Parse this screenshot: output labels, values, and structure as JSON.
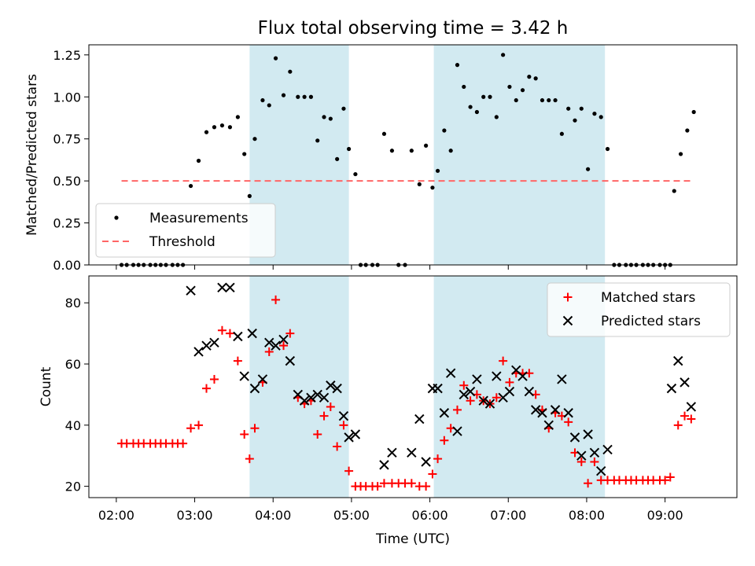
{
  "figure_title": "Flux total observing time = 3.42 h",
  "chart_data": [
    {
      "type": "scatter",
      "title": "Flux total observing time = 3.42 h",
      "xlabel": "",
      "ylabel": "Matched/Predicted stars",
      "xlim": [
        "01:39",
        "09:55"
      ],
      "ylim": [
        0,
        1.31
      ],
      "yticks": [
        0.0,
        0.25,
        0.5,
        0.75,
        1.0,
        1.25
      ],
      "ytick_labels": [
        "0.00",
        "0.25",
        "0.50",
        "0.75",
        "1.00",
        "1.25"
      ],
      "shaded_intervals": [
        [
          "03:42",
          "04:58"
        ],
        [
          "06:03",
          "08:14"
        ]
      ],
      "shade_color": "#add8e6",
      "legend_position": "lower-left",
      "series": [
        {
          "name": "Measurements",
          "marker": "point",
          "color": "#000000",
          "points": [
            [
              "02:04",
              0
            ],
            [
              "02:08",
              0
            ],
            [
              "02:13",
              0
            ],
            [
              "02:17",
              0
            ],
            [
              "02:21",
              0
            ],
            [
              "02:26",
              0
            ],
            [
              "02:30",
              0
            ],
            [
              "02:34",
              0
            ],
            [
              "02:38",
              0
            ],
            [
              "02:43",
              0
            ],
            [
              "02:47",
              0
            ],
            [
              "02:51",
              0
            ],
            [
              "02:57",
              0.47
            ],
            [
              "03:03",
              0.62
            ],
            [
              "03:09",
              0.79
            ],
            [
              "03:15",
              0.82
            ],
            [
              "03:21",
              0.83
            ],
            [
              "03:27",
              0.82
            ],
            [
              "03:33",
              0.88
            ],
            [
              "03:38",
              0.66
            ],
            [
              "03:42",
              0.41
            ],
            [
              "03:46",
              0.75
            ],
            [
              "03:52",
              0.98
            ],
            [
              "03:57",
              0.95
            ],
            [
              "04:02",
              1.23
            ],
            [
              "04:08",
              1.01
            ],
            [
              "04:13",
              1.15
            ],
            [
              "04:19",
              1.0
            ],
            [
              "04:24",
              1.0
            ],
            [
              "04:29",
              1.0
            ],
            [
              "04:34",
              0.74
            ],
            [
              "04:39",
              0.88
            ],
            [
              "04:44",
              0.87
            ],
            [
              "04:49",
              0.63
            ],
            [
              "04:54",
              0.93
            ],
            [
              "04:58",
              0.69
            ],
            [
              "05:03",
              0.54
            ],
            [
              "05:07",
              0
            ],
            [
              "05:11",
              0
            ],
            [
              "05:16",
              0
            ],
            [
              "05:20",
              0
            ],
            [
              "05:25",
              0.78
            ],
            [
              "05:31",
              0.68
            ],
            [
              "05:36",
              0
            ],
            [
              "05:41",
              0
            ],
            [
              "05:46",
              0.68
            ],
            [
              "05:52",
              0.48
            ],
            [
              "05:57",
              0.71
            ],
            [
              "06:02",
              0.46
            ],
            [
              "06:06",
              0.56
            ],
            [
              "06:11",
              0.8
            ],
            [
              "06:16",
              0.68
            ],
            [
              "06:21",
              1.19
            ],
            [
              "06:26",
              1.06
            ],
            [
              "06:31",
              0.94
            ],
            [
              "06:36",
              0.91
            ],
            [
              "06:41",
              1.0
            ],
            [
              "06:46",
              1.0
            ],
            [
              "06:51",
              0.88
            ],
            [
              "06:56",
              1.25
            ],
            [
              "07:01",
              1.06
            ],
            [
              "07:06",
              0.98
            ],
            [
              "07:11",
              1.04
            ],
            [
              "07:16",
              1.12
            ],
            [
              "07:21",
              1.11
            ],
            [
              "07:26",
              0.98
            ],
            [
              "07:31",
              0.98
            ],
            [
              "07:36",
              0.98
            ],
            [
              "07:41",
              0.78
            ],
            [
              "07:46",
              0.93
            ],
            [
              "07:51",
              0.86
            ],
            [
              "07:56",
              0.93
            ],
            [
              "08:01",
              0.57
            ],
            [
              "08:06",
              0.9
            ],
            [
              "08:11",
              0.88
            ],
            [
              "08:16",
              0.69
            ],
            [
              "08:21",
              0
            ],
            [
              "08:25",
              0
            ],
            [
              "08:30",
              0
            ],
            [
              "08:34",
              0
            ],
            [
              "08:38",
              0
            ],
            [
              "08:43",
              0
            ],
            [
              "08:47",
              0
            ],
            [
              "08:51",
              0
            ],
            [
              "08:56",
              0
            ],
            [
              "09:00",
              0
            ],
            [
              "09:04",
              0
            ],
            [
              "09:07",
              0.44
            ],
            [
              "09:12",
              0.66
            ],
            [
              "09:17",
              0.8
            ],
            [
              "09:22",
              0.91
            ]
          ]
        },
        {
          "name": "Threshold",
          "marker": "dashed-line",
          "color": "#ff6666",
          "points": [
            [
              "02:04",
              0.5
            ],
            [
              "09:20",
              0.5
            ]
          ]
        }
      ]
    },
    {
      "type": "scatter",
      "title": "",
      "xlabel": "Time (UTC)",
      "ylabel": "Count",
      "xlim": [
        "01:39",
        "09:55"
      ],
      "ylim": [
        16.3,
        88.8
      ],
      "yticks": [
        20,
        40,
        60,
        80
      ],
      "ytick_labels": [
        "20",
        "40",
        "60",
        "80"
      ],
      "xticks": [
        "02:00",
        "03:00",
        "04:00",
        "05:00",
        "06:00",
        "07:00",
        "08:00",
        "09:00"
      ],
      "xtick_labels": [
        "02:00",
        "03:00",
        "04:00",
        "05:00",
        "06:00",
        "07:00",
        "08:00",
        "09:00"
      ],
      "shaded_intervals": [
        [
          "03:42",
          "04:58"
        ],
        [
          "06:03",
          "08:14"
        ]
      ],
      "shade_color": "#add8e6",
      "legend_position": "top-right",
      "series": [
        {
          "name": "Matched stars",
          "marker": "plus",
          "color": "#ff0000",
          "points": [
            [
              "02:04",
              34
            ],
            [
              "02:08",
              34
            ],
            [
              "02:13",
              34
            ],
            [
              "02:17",
              34
            ],
            [
              "02:21",
              34
            ],
            [
              "02:26",
              34
            ],
            [
              "02:30",
              34
            ],
            [
              "02:34",
              34
            ],
            [
              "02:38",
              34
            ],
            [
              "02:43",
              34
            ],
            [
              "02:47",
              34
            ],
            [
              "02:51",
              34
            ],
            [
              "02:57",
              39
            ],
            [
              "03:03",
              40
            ],
            [
              "03:09",
              52
            ],
            [
              "03:15",
              55
            ],
            [
              "03:21",
              71
            ],
            [
              "03:27",
              70
            ],
            [
              "03:33",
              61
            ],
            [
              "03:38",
              37
            ],
            [
              "03:42",
              29
            ],
            [
              "03:46",
              39
            ],
            [
              "03:52",
              54
            ],
            [
              "03:57",
              64
            ],
            [
              "04:02",
              81
            ],
            [
              "04:08",
              66
            ],
            [
              "04:13",
              70
            ],
            [
              "04:19",
              49
            ],
            [
              "04:24",
              47
            ],
            [
              "04:29",
              48
            ],
            [
              "04:34",
              37
            ],
            [
              "04:39",
              43
            ],
            [
              "04:44",
              46
            ],
            [
              "04:49",
              33
            ],
            [
              "04:54",
              40
            ],
            [
              "04:58",
              25
            ],
            [
              "05:03",
              20
            ],
            [
              "05:07",
              20
            ],
            [
              "05:11",
              20
            ],
            [
              "05:16",
              20
            ],
            [
              "05:20",
              20
            ],
            [
              "05:25",
              21
            ],
            [
              "05:31",
              21
            ],
            [
              "05:36",
              21
            ],
            [
              "05:41",
              21
            ],
            [
              "05:46",
              21
            ],
            [
              "05:52",
              20
            ],
            [
              "05:57",
              20
            ],
            [
              "06:02",
              24
            ],
            [
              "06:06",
              29
            ],
            [
              "06:11",
              35
            ],
            [
              "06:16",
              39
            ],
            [
              "06:21",
              45
            ],
            [
              "06:26",
              53
            ],
            [
              "06:31",
              48
            ],
            [
              "06:36",
              50
            ],
            [
              "06:41",
              48
            ],
            [
              "06:46",
              47
            ],
            [
              "06:51",
              49
            ],
            [
              "06:56",
              61
            ],
            [
              "07:01",
              54
            ],
            [
              "07:06",
              57
            ],
            [
              "07:11",
              57
            ],
            [
              "07:16",
              57
            ],
            [
              "07:21",
              50
            ],
            [
              "07:26",
              45
            ],
            [
              "07:31",
              39
            ],
            [
              "07:36",
              44
            ],
            [
              "07:41",
              43
            ],
            [
              "07:46",
              41
            ],
            [
              "07:51",
              31
            ],
            [
              "07:56",
              28
            ],
            [
              "08:01",
              21
            ],
            [
              "08:06",
              28
            ],
            [
              "08:11",
              22
            ],
            [
              "08:16",
              22
            ],
            [
              "08:21",
              22
            ],
            [
              "08:25",
              22
            ],
            [
              "08:30",
              22
            ],
            [
              "08:34",
              22
            ],
            [
              "08:38",
              22
            ],
            [
              "08:43",
              22
            ],
            [
              "08:47",
              22
            ],
            [
              "08:51",
              22
            ],
            [
              "08:56",
              22
            ],
            [
              "09:00",
              22
            ],
            [
              "09:04",
              23
            ],
            [
              "09:10",
              40
            ],
            [
              "09:15",
              43
            ],
            [
              "09:20",
              42
            ]
          ]
        },
        {
          "name": "Predicted stars",
          "marker": "x",
          "color": "#000000",
          "points": [
            [
              "02:57",
              84
            ],
            [
              "03:03",
              64
            ],
            [
              "03:09",
              66
            ],
            [
              "03:15",
              67
            ],
            [
              "03:21",
              85
            ],
            [
              "03:27",
              85
            ],
            [
              "03:33",
              69
            ],
            [
              "03:38",
              56
            ],
            [
              "03:44",
              70
            ],
            [
              "03:46",
              52
            ],
            [
              "03:52",
              55
            ],
            [
              "03:57",
              67
            ],
            [
              "04:02",
              66
            ],
            [
              "04:08",
              68
            ],
            [
              "04:13",
              61
            ],
            [
              "04:19",
              50
            ],
            [
              "04:24",
              48
            ],
            [
              "04:29",
              49
            ],
            [
              "04:34",
              50
            ],
            [
              "04:39",
              49
            ],
            [
              "04:44",
              53
            ],
            [
              "04:49",
              52
            ],
            [
              "04:54",
              43
            ],
            [
              "04:58",
              36
            ],
            [
              "05:03",
              37
            ],
            [
              "05:25",
              27
            ],
            [
              "05:31",
              31
            ],
            [
              "05:46",
              31
            ],
            [
              "05:52",
              42
            ],
            [
              "05:57",
              28
            ],
            [
              "06:02",
              52
            ],
            [
              "06:06",
              52
            ],
            [
              "06:11",
              44
            ],
            [
              "06:16",
              57
            ],
            [
              "06:21",
              38
            ],
            [
              "06:26",
              50
            ],
            [
              "06:31",
              51
            ],
            [
              "06:36",
              55
            ],
            [
              "06:41",
              48
            ],
            [
              "06:46",
              47
            ],
            [
              "06:51",
              56
            ],
            [
              "06:56",
              49
            ],
            [
              "07:01",
              51
            ],
            [
              "07:06",
              58
            ],
            [
              "07:11",
              56
            ],
            [
              "07:16",
              51
            ],
            [
              "07:21",
              45
            ],
            [
              "07:26",
              44
            ],
            [
              "07:31",
              40
            ],
            [
              "07:36",
              45
            ],
            [
              "07:41",
              55
            ],
            [
              "07:46",
              44
            ],
            [
              "07:51",
              36
            ],
            [
              "07:56",
              30
            ],
            [
              "08:01",
              37
            ],
            [
              "08:06",
              31
            ],
            [
              "08:11",
              25
            ],
            [
              "08:16",
              32
            ],
            [
              "09:05",
              52
            ],
            [
              "09:10",
              61
            ],
            [
              "09:15",
              54
            ],
            [
              "09:20",
              46
            ]
          ]
        }
      ]
    }
  ]
}
